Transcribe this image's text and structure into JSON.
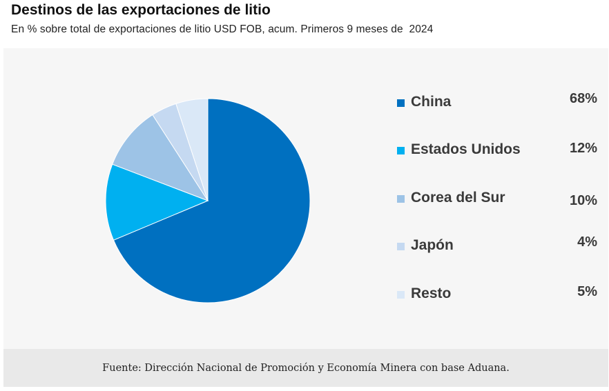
{
  "chart_data": {
    "type": "pie",
    "title": "Destinos de las exportaciones de litio",
    "subtitle": "En % sobre total de exportaciones de litio USD FOB, acum. Primeros 9 meses de  2024",
    "categories": [
      "China",
      "Estados Unidos",
      "Corea del Sur",
      "Japón",
      "Resto"
    ],
    "values": [
      68,
      12,
      10,
      4,
      5
    ],
    "value_labels": [
      "68%",
      "12%",
      "10%",
      "4%",
      "5%"
    ],
    "colors": [
      "#0070c0",
      "#00b0f0",
      "#9dc3e6",
      "#c5d9f1",
      "#dae8f7"
    ],
    "legend_position": "right",
    "source": "Fuente: Dirección Nacional de Promoción y Economía Minera con base Aduana."
  }
}
